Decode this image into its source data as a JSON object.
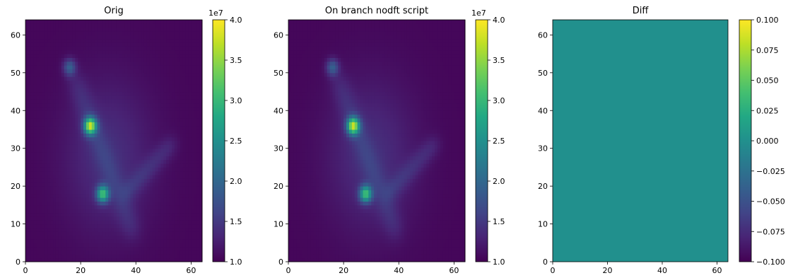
{
  "chart_data": [
    {
      "type": "heatmap",
      "title": "Orig",
      "xlabel": "",
      "ylabel": "",
      "xlim": [
        0,
        64
      ],
      "ylim": [
        0,
        64
      ],
      "x_ticks": [
        "0",
        "20",
        "40",
        "60"
      ],
      "y_ticks": [
        "0",
        "10",
        "20",
        "30",
        "40",
        "50",
        "60"
      ],
      "colorbar": {
        "range": [
          1.0,
          4.0
        ],
        "ticks": [
          "1.0",
          "1.5",
          "2.0",
          "2.5",
          "3.0",
          "3.5",
          "4.0"
        ],
        "exponent_label": "1e7"
      },
      "colormap": "viridis",
      "features": [
        {
          "x": 28,
          "y": 18,
          "intensity": 3.4
        },
        {
          "x": 23.5,
          "y": 36,
          "intensity": 4.0
        },
        {
          "x": 16,
          "y": 51.5,
          "intensity": 2.3
        }
      ]
    },
    {
      "type": "heatmap",
      "title": "On branch nodft script",
      "xlabel": "",
      "ylabel": "",
      "xlim": [
        0,
        64
      ],
      "ylim": [
        0,
        64
      ],
      "x_ticks": [
        "0",
        "20",
        "40",
        "60"
      ],
      "y_ticks": [
        "0",
        "10",
        "20",
        "30",
        "40",
        "50",
        "60"
      ],
      "colorbar": {
        "range": [
          1.0,
          4.0
        ],
        "ticks": [
          "1.0",
          "1.5",
          "2.0",
          "2.5",
          "3.0",
          "3.5",
          "4.0"
        ],
        "exponent_label": "1e7"
      },
      "colormap": "viridis",
      "features": [
        {
          "x": 28,
          "y": 18,
          "intensity": 3.4
        },
        {
          "x": 23.5,
          "y": 36,
          "intensity": 4.0
        },
        {
          "x": 16,
          "y": 51.5,
          "intensity": 2.3
        }
      ]
    },
    {
      "type": "heatmap",
      "title": "Diff",
      "xlabel": "",
      "ylabel": "",
      "xlim": [
        0,
        64
      ],
      "ylim": [
        0,
        64
      ],
      "x_ticks": [
        "0",
        "20",
        "40",
        "60"
      ],
      "y_ticks": [
        "0",
        "10",
        "20",
        "30",
        "40",
        "50",
        "60"
      ],
      "colorbar": {
        "range": [
          -0.1,
          0.1
        ],
        "ticks": [
          "−0.100",
          "−0.075",
          "−0.050",
          "−0.025",
          "0.000",
          "0.025",
          "0.050",
          "0.075",
          "0.100"
        ],
        "exponent_label": ""
      },
      "colormap": "viridis",
      "uniform_value": 0.0
    }
  ],
  "colors": {
    "viridis_low": "#440154",
    "viridis_mid": "#21908d",
    "viridis_high": "#fde725"
  }
}
